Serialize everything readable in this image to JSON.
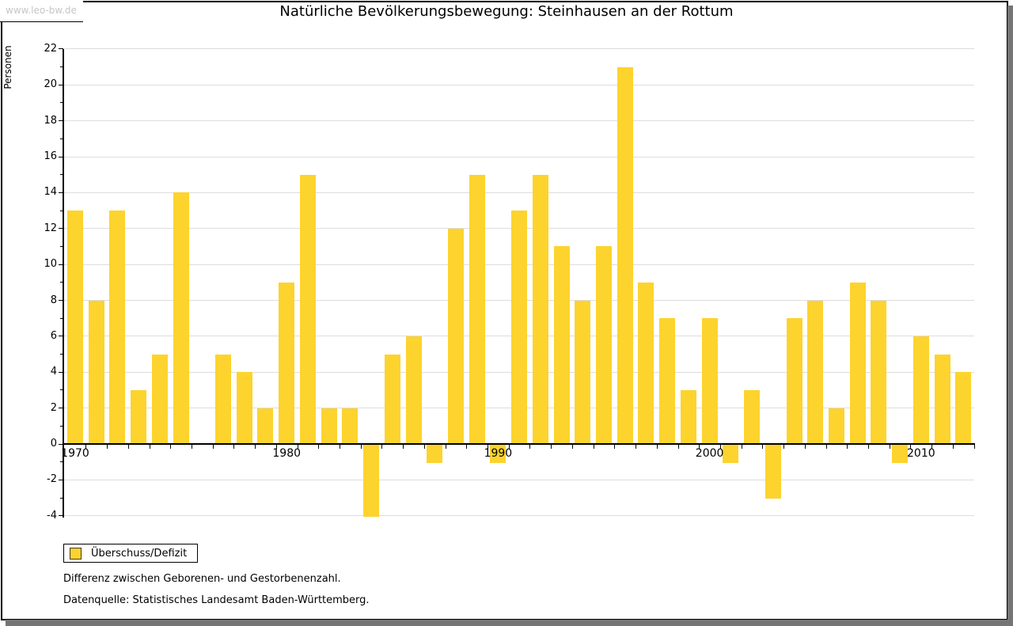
{
  "watermark": "www.leo-bw.de",
  "title": "Natürliche Bevölkerungsbewegung: Steinhausen an der Rottum",
  "y_axis_label": "Personen",
  "legend": {
    "label": "Überschuss/Defizit"
  },
  "footnotes": {
    "line1": "Differenz zwischen Geborenen- und Gestorbenenzahl.",
    "line2": "Datenquelle: Statistisches Landesamt Baden-Württemberg."
  },
  "colors": {
    "bar": "#fdd32d",
    "grid": "#dddddd",
    "axis": "#000000",
    "watermark_text": "#c6c6c6",
    "frame_shadow": "#757575"
  },
  "chart_data": {
    "type": "bar",
    "title": "Natürliche Bevölkerungsbewegung: Steinhausen an der Rottum",
    "xlabel": "",
    "ylabel": "Personen",
    "series_name": "Überschuss/Defizit",
    "legend_position": "bottom-left-outside",
    "grid": "horizontal",
    "ylim": [
      -4,
      22
    ],
    "y_ticks": [
      22,
      20,
      18,
      16,
      14,
      12,
      10,
      8,
      6,
      4,
      2,
      0,
      -2,
      -4
    ],
    "x_labels": [
      1970,
      1980,
      1990,
      2000,
      2010
    ],
    "x": [
      1970,
      1971,
      1972,
      1973,
      1974,
      1975,
      1976,
      1977,
      1978,
      1979,
      1980,
      1981,
      1982,
      1983,
      1984,
      1985,
      1986,
      1987,
      1988,
      1989,
      1990,
      1991,
      1992,
      1993,
      1994,
      1995,
      1996,
      1997,
      1998,
      1999,
      2000,
      2001,
      2002,
      2003,
      2004,
      2005,
      2006,
      2007,
      2008,
      2009,
      2010,
      2011,
      2012
    ],
    "values": [
      13,
      8,
      13,
      3,
      5,
      14,
      0,
      5,
      4,
      2,
      9,
      15,
      2,
      2,
      -4,
      5,
      6,
      -1,
      12,
      15,
      -1,
      13,
      15,
      11,
      8,
      11,
      21,
      9,
      7,
      3,
      7,
      -1,
      3,
      -3,
      7,
      8,
      2,
      9,
      8,
      -1,
      6,
      5,
      4
    ]
  }
}
